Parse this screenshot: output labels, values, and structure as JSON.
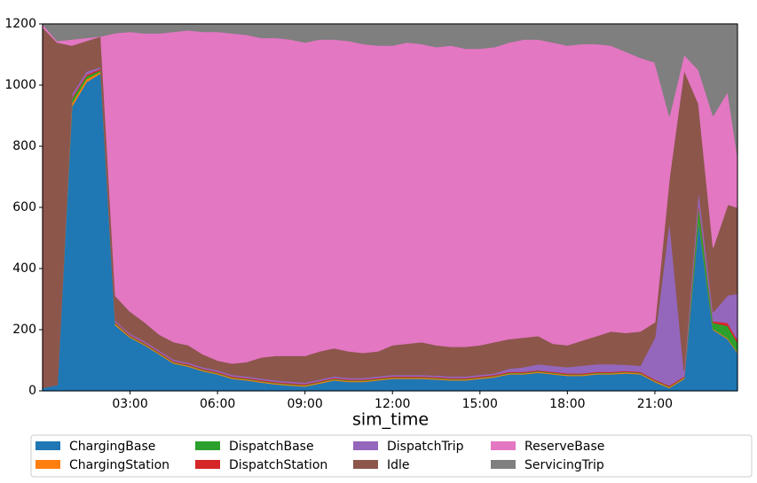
{
  "chart_data": {
    "type": "stacked_area",
    "x_label": "sim_time",
    "x": [
      0,
      30,
      60,
      90,
      120,
      150,
      180,
      210,
      240,
      270,
      300,
      330,
      360,
      390,
      420,
      450,
      480,
      510,
      540,
      570,
      600,
      630,
      660,
      690,
      720,
      750,
      780,
      810,
      840,
      870,
      900,
      930,
      960,
      990,
      1020,
      1050,
      1080,
      1110,
      1140,
      1170,
      1200,
      1230,
      1260,
      1290,
      1320,
      1350,
      1380,
      1410,
      1430
    ],
    "xlim": [
      0,
      1430
    ],
    "xticks": [
      {
        "value": 180,
        "label": "03:00"
      },
      {
        "value": 360,
        "label": "06:00"
      },
      {
        "value": 540,
        "label": "09:00"
      },
      {
        "value": 720,
        "label": "12:00"
      },
      {
        "value": 900,
        "label": "15:00"
      },
      {
        "value": 1080,
        "label": "18:00"
      },
      {
        "value": 1260,
        "label": "21:00"
      }
    ],
    "ylim": [
      0,
      1200
    ],
    "yticks": [
      0,
      200,
      400,
      600,
      800,
      1000,
      1200
    ],
    "legend": "lower center",
    "series": [
      {
        "name": "ChargingBase",
        "color": "#1f77b4",
        "values": [
          10,
          20,
          930,
          1010,
          1040,
          215,
          175,
          150,
          120,
          90,
          80,
          65,
          55,
          40,
          35,
          28,
          22,
          18,
          15,
          25,
          35,
          30,
          30,
          35,
          40,
          40,
          40,
          38,
          35,
          35,
          40,
          45,
          55,
          55,
          60,
          55,
          50,
          50,
          55,
          55,
          58,
          55,
          30,
          10,
          40,
          560,
          200,
          170,
          125
        ]
      },
      {
        "name": "ChargingStation",
        "color": "#ff7f0e",
        "values": [
          0,
          0,
          10,
          10,
          5,
          5,
          3,
          3,
          3,
          3,
          3,
          3,
          3,
          3,
          3,
          3,
          3,
          3,
          3,
          3,
          3,
          3,
          3,
          3,
          3,
          3,
          3,
          3,
          3,
          3,
          3,
          3,
          3,
          3,
          3,
          3,
          3,
          3,
          3,
          3,
          3,
          3,
          3,
          3,
          3,
          3,
          3,
          3,
          3
        ]
      },
      {
        "name": "DispatchBase",
        "color": "#2ca02c",
        "values": [
          0,
          0,
          15,
          10,
          5,
          3,
          2,
          2,
          2,
          2,
          2,
          2,
          2,
          2,
          2,
          2,
          2,
          2,
          2,
          2,
          2,
          2,
          2,
          2,
          2,
          2,
          2,
          2,
          2,
          2,
          2,
          2,
          2,
          2,
          2,
          2,
          2,
          2,
          2,
          2,
          2,
          2,
          2,
          2,
          2,
          50,
          20,
          40,
          30
        ]
      },
      {
        "name": "DispatchStation",
        "color": "#d62728",
        "values": [
          0,
          0,
          5,
          5,
          5,
          3,
          3,
          3,
          3,
          3,
          3,
          3,
          3,
          3,
          3,
          3,
          3,
          3,
          3,
          3,
          3,
          3,
          3,
          3,
          3,
          3,
          3,
          3,
          3,
          3,
          3,
          3,
          3,
          3,
          3,
          3,
          3,
          3,
          3,
          3,
          3,
          3,
          3,
          3,
          3,
          10,
          5,
          10,
          10
        ]
      },
      {
        "name": "DispatchTrip",
        "color": "#9467bd",
        "values": [
          0,
          0,
          10,
          10,
          5,
          5,
          5,
          5,
          5,
          5,
          5,
          5,
          5,
          5,
          5,
          5,
          5,
          5,
          5,
          5,
          5,
          5,
          5,
          5,
          5,
          5,
          5,
          5,
          5,
          5,
          5,
          5,
          10,
          15,
          20,
          20,
          20,
          25,
          25,
          25,
          20,
          20,
          137,
          542,
          20,
          40,
          30,
          90,
          150
        ]
      },
      {
        "name": "Idle",
        "color": "#8c564b",
        "values": [
          1180,
          1120,
          160,
          100,
          100,
          80,
          72,
          62,
          52,
          57,
          57,
          42,
          32,
          37,
          47,
          69,
          80,
          84,
          87,
          92,
          92,
          87,
          82,
          82,
          97,
          102,
          107,
          99,
          97,
          97,
          97,
          102,
          97,
          97,
          92,
          72,
          72,
          82,
          92,
          107,
          104,
          112,
          50,
          140,
          982,
          277,
          212,
          297,
          282
        ]
      },
      {
        "name": "ReserveBase",
        "color": "#e377c2",
        "values": [
          10,
          5,
          20,
          10,
          0,
          860,
          915,
          945,
          985,
          1015,
          1030,
          1055,
          1075,
          1080,
          1070,
          1045,
          1040,
          1035,
          1025,
          1020,
          1010,
          1015,
          1010,
          1000,
          980,
          985,
          975,
          975,
          985,
          975,
          970,
          965,
          970,
          975,
          970,
          985,
          980,
          970,
          955,
          935,
          920,
          895,
          850,
          200,
          50,
          110,
          430,
          370,
          170
        ]
      },
      {
        "name": "ServicingTrip",
        "color": "#7f7f7f",
        "values": [
          0,
          55,
          50,
          45,
          40,
          29,
          25,
          30,
          30,
          25,
          20,
          25,
          25,
          30,
          35,
          45,
          45,
          50,
          60,
          50,
          50,
          55,
          65,
          70,
          70,
          60,
          65,
          75,
          70,
          80,
          80,
          75,
          60,
          50,
          50,
          60,
          70,
          65,
          65,
          70,
          90,
          110,
          125,
          300,
          100,
          150,
          300,
          220,
          430
        ]
      }
    ]
  }
}
